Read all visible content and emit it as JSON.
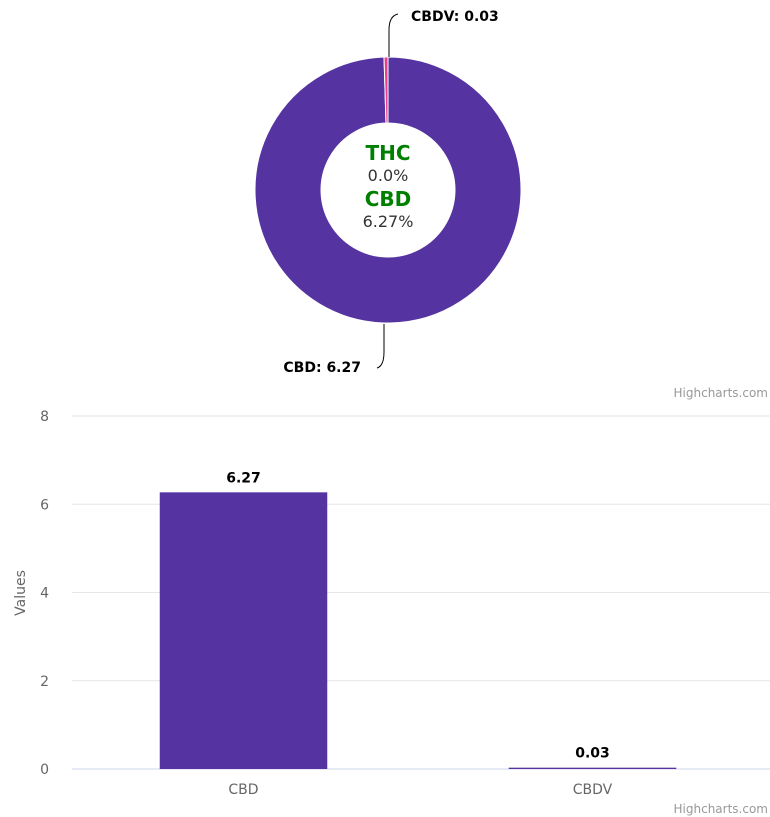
{
  "chart_data": [
    {
      "type": "pie",
      "variant": "donut",
      "slices": [
        {
          "name": "CBD",
          "value": 6.27,
          "label": "CBD: 6.27",
          "color": "#5533a0"
        },
        {
          "name": "CBDV",
          "value": 0.03,
          "label": "CBDV: 0.03",
          "color": "#e83e8c"
        }
      ],
      "center": {
        "thc_label": "THC",
        "thc_value": "0.0%",
        "cbd_label": "CBD",
        "cbd_value": "6.27%"
      },
      "credit": "Highcharts.com"
    },
    {
      "type": "bar",
      "categories": [
        "CBD",
        "CBDV"
      ],
      "values": [
        6.27,
        0.03
      ],
      "value_labels": [
        "6.27",
        "0.03"
      ],
      "ylabel": "Values",
      "xlabel": "",
      "title": "",
      "ylim": [
        0,
        8
      ],
      "yticks": [
        0,
        2,
        4,
        6,
        8
      ],
      "grid": true,
      "bar_color": "#5533a0",
      "credit": "Highcharts.com"
    }
  ]
}
